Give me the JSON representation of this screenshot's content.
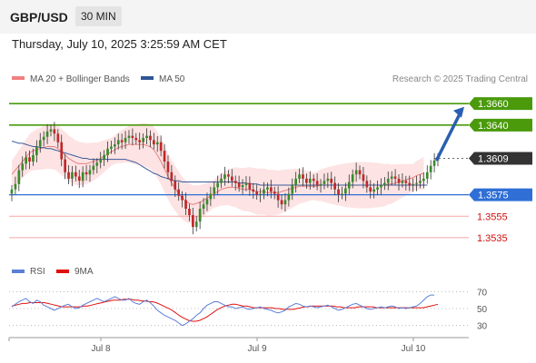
{
  "header": {
    "pair": "GBP/USD",
    "timeframe": "30 MIN"
  },
  "timestamp": "Thursday, July 10, 2025 3:25:59 AM CET",
  "legend": {
    "ma20": {
      "label": "MA 20 + Bollinger Bands",
      "color": "#f08080"
    },
    "ma50": {
      "label": "MA 50",
      "color": "#2f5597"
    }
  },
  "credit": "Research © 2025 Trading Central",
  "price_chart": {
    "ylim": [
      1.3518,
      1.3672
    ],
    "levels": [
      {
        "value": 1.366,
        "label": "1.3660",
        "kind": "target",
        "color": "#4a9a0c"
      },
      {
        "value": 1.364,
        "label": "1.3640",
        "kind": "target",
        "color": "#4a9a0c"
      },
      {
        "value": 1.3609,
        "label": "1.3609",
        "kind": "last",
        "color": "#333333"
      },
      {
        "value": 1.3575,
        "label": "1.3575",
        "kind": "pivot",
        "color": "#2f6fd6"
      },
      {
        "value": 1.3555,
        "label": "1.3555",
        "kind": "support",
        "color": "#cc1111"
      },
      {
        "value": 1.3535,
        "label": "1.3535",
        "kind": "support",
        "color": "#cc1111"
      }
    ],
    "arrow": {
      "from": [
        1.3608
      ],
      "to": [
        1.3657
      ],
      "color": "#2a5fb0"
    }
  },
  "rsi_chart": {
    "legend": {
      "rsi": {
        "label": "RSI",
        "color": "#5b7fd6"
      },
      "ma9": {
        "label": "9MA",
        "color": "#e01010"
      }
    },
    "ticks": [
      "70",
      "50",
      "30"
    ],
    "ylim": [
      20,
      80
    ]
  },
  "x_labels": [
    "Jul 8",
    "Jul 9",
    "Jul 10"
  ],
  "chart_data": {
    "type": "candlestick",
    "x_labels": [
      "Jul 8",
      "Jul 9",
      "Jul 10"
    ],
    "levels": [
      1.366,
      1.364,
      1.3609,
      1.3575,
      1.3555,
      1.3535
    ],
    "last_price": 1.3609,
    "closes": [
      1.358,
      1.3585,
      1.3598,
      1.3604,
      1.361,
      1.3606,
      1.3612,
      1.362,
      1.3626,
      1.3629,
      1.3634,
      1.3636,
      1.3632,
      1.3624,
      1.3608,
      1.3596,
      1.359,
      1.3596,
      1.3592,
      1.3588,
      1.3596,
      1.3594,
      1.3598,
      1.3602,
      1.3605,
      1.3608,
      1.3612,
      1.3618,
      1.362,
      1.3622,
      1.3626,
      1.3624,
      1.3628,
      1.363,
      1.3628,
      1.3626,
      1.3624,
      1.3628,
      1.363,
      1.3626,
      1.3622,
      1.3624,
      1.3616,
      1.3606,
      1.3596,
      1.3588,
      1.358,
      1.3574,
      1.357,
      1.3562,
      1.3556,
      1.3545,
      1.355,
      1.3562,
      1.3566,
      1.3571,
      1.3576,
      1.3582,
      1.3586,
      1.359,
      1.3594,
      1.3592,
      1.3588,
      1.3586,
      1.3582,
      1.3584,
      1.3586,
      1.358,
      1.3578,
      1.3575,
      1.3576,
      1.358,
      1.3582,
      1.3578,
      1.3576,
      1.357,
      1.3566,
      1.357,
      1.3576,
      1.3584,
      1.359,
      1.3594,
      1.359,
      1.3586,
      1.359,
      1.3588,
      1.3584,
      1.3585,
      1.3588,
      1.359,
      1.3586,
      1.358,
      1.3575,
      1.3576,
      1.3581,
      1.3587,
      1.3594,
      1.3598,
      1.3594,
      1.3588,
      1.3582,
      1.3578,
      1.358,
      1.3582,
      1.3584,
      1.3586,
      1.359,
      1.3592,
      1.359,
      1.3586,
      1.3588,
      1.3586,
      1.3584,
      1.3585,
      1.3586,
      1.3588,
      1.359,
      1.3596,
      1.3602,
      1.3607,
      1.3609
    ],
    "ma20": [
      1.3594,
      1.3598,
      1.3602,
      1.3606,
      1.361,
      1.3614,
      1.3616,
      1.3617,
      1.3618,
      1.3619,
      1.362,
      1.362,
      1.362,
      1.3618,
      1.3615,
      1.3612,
      1.3609,
      1.3607,
      1.3605,
      1.3604,
      1.3604,
      1.3604,
      1.3605,
      1.3606,
      1.3607,
      1.3609,
      1.3611,
      1.3613,
      1.3615,
      1.3617,
      1.3619,
      1.362,
      1.3621,
      1.3622,
      1.3622,
      1.3622,
      1.3622,
      1.3622,
      1.3621,
      1.362,
      1.3617,
      1.3612,
      1.3606,
      1.3599,
      1.3592,
      1.3586,
      1.3581,
      1.3576,
      1.3572,
      1.3569,
      1.3567,
      1.3566,
      1.3567,
      1.3568,
      1.357,
      1.3572,
      1.3574,
      1.3576,
      1.3578,
      1.358,
      1.3581,
      1.3582,
      1.3582,
      1.3582,
      1.3581,
      1.358,
      1.358,
      1.358,
      1.3579,
      1.3578,
      1.3578,
      1.3578,
      1.3577,
      1.3577,
      1.3577,
      1.3577,
      1.3578,
      1.3579,
      1.358,
      1.3581,
      1.3582,
      1.3583,
      1.3583,
      1.3583,
      1.3583,
      1.3583,
      1.3583,
      1.3584,
      1.3584,
      1.3584,
      1.3584,
      1.3584,
      1.3584,
      1.3584,
      1.3584,
      1.3584,
      1.3584,
      1.3584,
      1.3584,
      1.3584,
      1.3584,
      1.3584,
      1.3584,
      1.3584,
      1.3584,
      1.3584,
      1.3585,
      1.3585,
      1.3586,
      1.3587,
      1.3588,
      1.3589,
      1.359,
      1.3591,
      1.3593,
      1.3594,
      1.3595
    ],
    "ma50": [
      1.3625,
      1.3624,
      1.3623,
      1.3623,
      1.3622,
      1.3621,
      1.362,
      1.362,
      1.3619,
      1.3619,
      1.3618,
      1.3618,
      1.3617,
      1.3616,
      1.3615,
      1.3614,
      1.3613,
      1.3612,
      1.3611,
      1.361,
      1.3609,
      1.3609,
      1.3608,
      1.3608,
      1.3608,
      1.3608,
      1.3608,
      1.3608,
      1.3608,
      1.3608,
      1.3608,
      1.3608,
      1.3608,
      1.3607,
      1.3606,
      1.3605,
      1.3603,
      1.3601,
      1.3599,
      1.3597,
      1.3595,
      1.3594,
      1.3592,
      1.3591,
      1.359,
      1.3589,
      1.3588,
      1.3588,
      1.3587,
      1.3587,
      1.3587,
      1.3587,
      1.3587,
      1.3587,
      1.3587,
      1.3587,
      1.3587,
      1.3587,
      1.3587,
      1.3587,
      1.3587,
      1.3587,
      1.3587,
      1.3587,
      1.3586,
      1.3586,
      1.3586,
      1.3585,
      1.3585,
      1.3585,
      1.3584,
      1.3584,
      1.3584,
      1.3584,
      1.3584,
      1.3584,
      1.3584,
      1.3584,
      1.3584,
      1.3584,
      1.3584,
      1.3584,
      1.3584,
      1.3584,
      1.3584,
      1.3584,
      1.3584,
      1.3584,
      1.3584,
      1.3584,
      1.3584,
      1.3584,
      1.3584,
      1.3584,
      1.3584,
      1.3584,
      1.3584,
      1.3584,
      1.3584,
      1.3584,
      1.3584,
      1.3584,
      1.3584,
      1.3584,
      1.3584,
      1.3584,
      1.3584,
      1.3584,
      1.3584,
      1.3584,
      1.3584,
      1.3584,
      1.3584,
      1.3584,
      1.3584,
      1.3584,
      1.3584,
      1.3584
    ],
    "bollinger_width": 0.0018,
    "rsi": [
      52,
      55,
      58,
      60,
      62,
      58,
      56,
      60,
      58,
      54,
      52,
      50,
      48,
      50,
      52,
      54,
      55,
      52,
      50,
      51,
      54,
      56,
      58,
      60,
      62,
      60,
      58,
      60,
      62,
      64,
      62,
      60,
      60,
      62,
      58,
      56,
      55,
      58,
      60,
      57,
      53,
      48,
      45,
      42,
      40,
      38,
      36,
      33,
      30,
      32,
      35,
      38,
      42,
      45,
      50,
      54,
      56,
      58,
      58,
      56,
      54,
      52,
      52,
      50,
      51,
      52,
      50,
      49,
      50,
      51,
      52,
      50,
      49,
      48,
      46,
      45,
      46,
      48,
      52,
      54,
      56,
      55,
      53,
      52,
      53,
      52,
      51,
      52,
      53,
      54,
      52,
      50,
      48,
      49,
      51,
      53,
      55,
      56,
      54,
      52,
      50,
      49,
      50,
      51,
      52,
      51,
      52,
      53,
      52,
      50,
      51,
      50,
      51,
      52,
      53,
      56,
      60,
      64,
      66,
      66
    ],
    "rsi_ma9": [
      53,
      54,
      55,
      56,
      56,
      57,
      57,
      57,
      57,
      57,
      56,
      55,
      54,
      53,
      52,
      52,
      52,
      52,
      52,
      52,
      53,
      53,
      54,
      55,
      56,
      57,
      58,
      59,
      60,
      60,
      60,
      61,
      61,
      61,
      60,
      60,
      59,
      59,
      58,
      58,
      57,
      55,
      53,
      51,
      49,
      46,
      43,
      40,
      38,
      36,
      35,
      35,
      36,
      38,
      40,
      43,
      46,
      49,
      51,
      53,
      54,
      55,
      55,
      54,
      53,
      53,
      52,
      51,
      51,
      51,
      51,
      51,
      51,
      50,
      50,
      49,
      49,
      49,
      49,
      50,
      51,
      52,
      52,
      53,
      53,
      53,
      53,
      53,
      53,
      53,
      52,
      52,
      51,
      51,
      51,
      51,
      52,
      52,
      52,
      52,
      52,
      51,
      51,
      51,
      51,
      51,
      51,
      51,
      51,
      51,
      51,
      51,
      51,
      51,
      51,
      52,
      53,
      54,
      55
    ]
  }
}
